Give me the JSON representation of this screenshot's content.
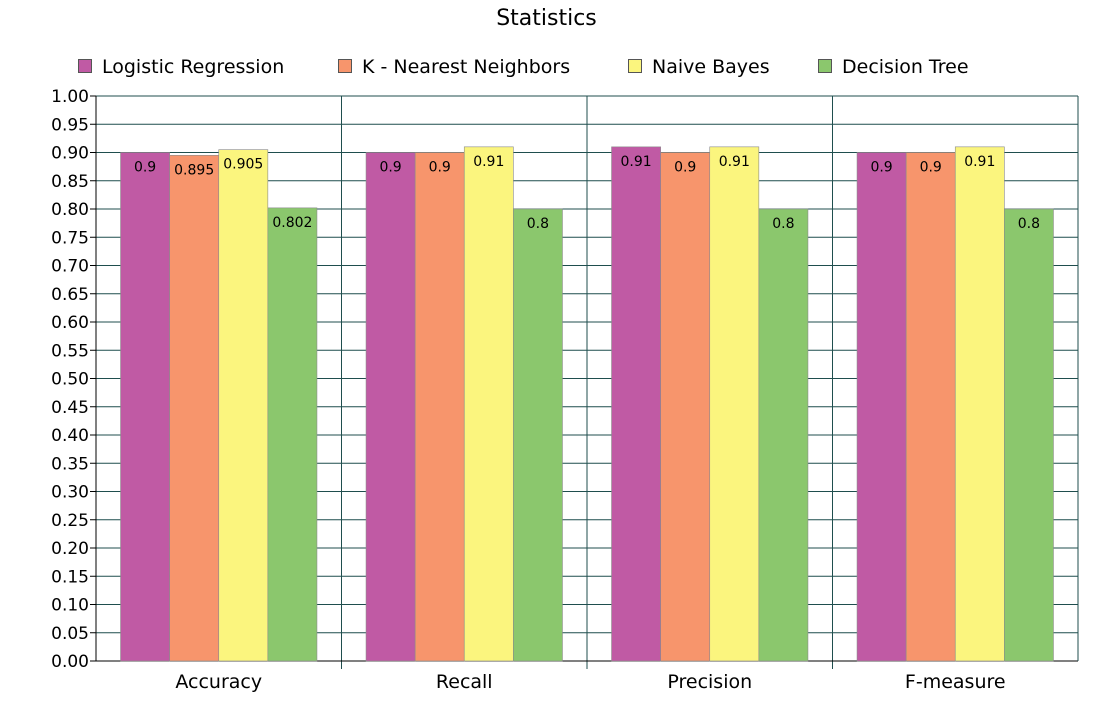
{
  "chart_data": {
    "type": "bar",
    "title": "Statistics",
    "xlabel": "",
    "ylabel": "",
    "categories": [
      "Accuracy",
      "Recall",
      "Precision",
      "F-measure"
    ],
    "series": [
      {
        "name": "Logistic Regression",
        "color": "#c05aa4",
        "values": [
          0.9,
          0.9,
          0.91,
          0.9
        ]
      },
      {
        "name": "K - Nearest Neighbors",
        "color": "#f7956c",
        "values": [
          0.895,
          0.9,
          0.9,
          0.9
        ]
      },
      {
        "name": "Naive Bayes",
        "color": "#fbf57e",
        "values": [
          0.905,
          0.91,
          0.91,
          0.91
        ]
      },
      {
        "name": "Decision Tree",
        "color": "#8bc76d",
        "values": [
          0.802,
          0.8,
          0.8,
          0.8
        ]
      }
    ],
    "data_labels": [
      [
        "0.9",
        "0.9",
        "0.91",
        "0.9"
      ],
      [
        "0.895",
        "0.9",
        "0.9",
        "0.9"
      ],
      [
        "0.905",
        "0.91",
        "0.91",
        "0.91"
      ],
      [
        "0.802",
        "0.8",
        "0.8",
        "0.8"
      ]
    ],
    "ylim": [
      0,
      1
    ],
    "ytick_labels": [
      "0.00",
      "0.05",
      "0.10",
      "0.15",
      "0.20",
      "0.25",
      "0.30",
      "0.35",
      "0.40",
      "0.45",
      "0.50",
      "0.55",
      "0.60",
      "0.65",
      "0.70",
      "0.75",
      "0.80",
      "0.85",
      "0.90",
      "0.95",
      "1.00"
    ],
    "grid": true,
    "legend_position": "top"
  }
}
